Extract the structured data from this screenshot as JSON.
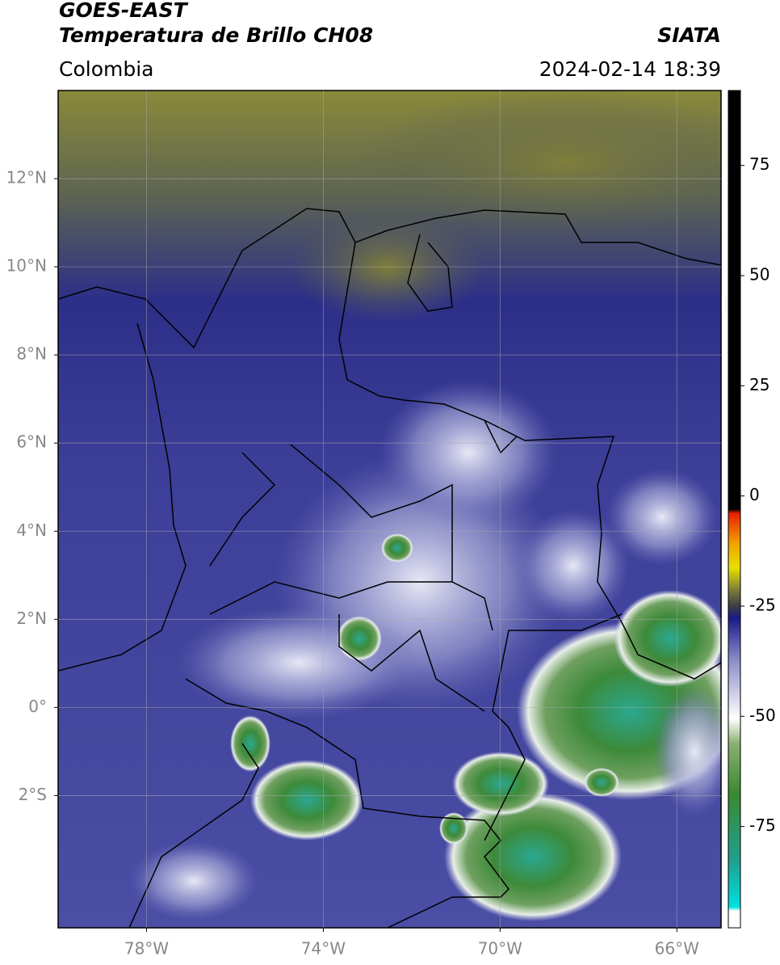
{
  "header": {
    "title": "GOES-EAST",
    "subtitle": "Temperatura de Brillo CH08",
    "region": "Colombia",
    "source": "SIATA",
    "datetime": "2024-02-14 18:39"
  },
  "map": {
    "lonlim": [
      -80,
      -65
    ],
    "latlim": [
      -5,
      14
    ],
    "lat_ticks": [
      {
        "value": 12,
        "label": "12°N"
      },
      {
        "value": 10,
        "label": "10°N"
      },
      {
        "value": 8,
        "label": "8°N"
      },
      {
        "value": 6,
        "label": "6°N"
      },
      {
        "value": 4,
        "label": "4°N"
      },
      {
        "value": 2,
        "label": "2°N"
      },
      {
        "value": 0,
        "label": "0°"
      },
      {
        "value": -2,
        "label": "2°S"
      }
    ],
    "lon_ticks": [
      {
        "value": -78,
        "label": "78°W"
      },
      {
        "value": -74,
        "label": "74°W"
      },
      {
        "value": -70,
        "label": "70°W"
      },
      {
        "value": -66,
        "label": "66°W"
      }
    ],
    "grid": true
  },
  "colorbar": {
    "lim": [
      -98,
      92
    ],
    "ticks": [
      75,
      50,
      25,
      0,
      -25,
      -50,
      -75
    ]
  }
}
